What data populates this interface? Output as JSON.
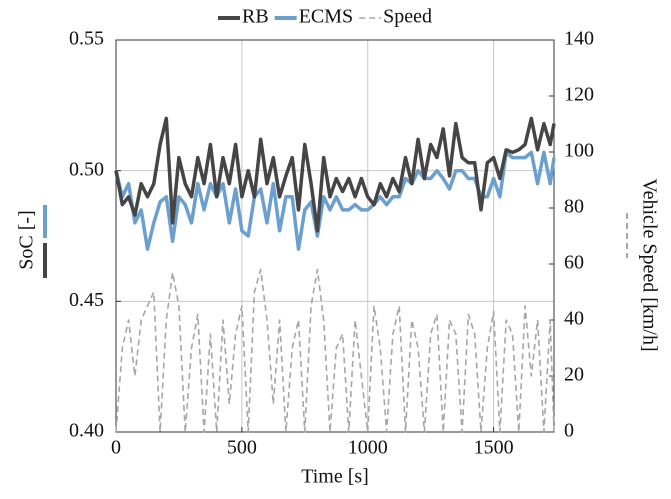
{
  "chart_data": {
    "type": "line",
    "x_label": "Time [s]",
    "y_label": "SoC [-]",
    "y2_label": "Vehicle Speed [km/h]",
    "legend": "top",
    "grid": true,
    "xlim": [
      0,
      1740
    ],
    "xticks": [
      0,
      500,
      1000,
      1500
    ],
    "ylim": [
      0.4,
      0.55
    ],
    "yticks": [
      {
        "value": 0.4,
        "label": "0.40"
      },
      0.45,
      {
        "value": 0.5,
        "label": "0.50"
      },
      0.55
    ],
    "y2lim": [
      0,
      140
    ],
    "y2ticks": [
      0,
      20,
      40,
      60,
      80,
      100,
      120,
      140
    ],
    "x": [
      0,
      25,
      50,
      75,
      100,
      125,
      150,
      175,
      200,
      225,
      250,
      275,
      300,
      325,
      350,
      375,
      400,
      425,
      450,
      475,
      500,
      525,
      550,
      575,
      600,
      625,
      650,
      675,
      700,
      725,
      750,
      775,
      800,
      825,
      850,
      875,
      900,
      925,
      950,
      975,
      1000,
      1025,
      1050,
      1075,
      1100,
      1125,
      1150,
      1175,
      1200,
      1225,
      1250,
      1275,
      1300,
      1325,
      1350,
      1375,
      1400,
      1425,
      1450,
      1475,
      1500,
      1525,
      1550,
      1575,
      1600,
      1625,
      1650,
      1675,
      1700,
      1725,
      1740
    ],
    "series": [
      {
        "name": "RB",
        "color": "#454545",
        "dash": "solid",
        "values": [
          0.5,
          0.487,
          0.49,
          0.483,
          0.495,
          0.49,
          0.495,
          0.51,
          0.52,
          0.48,
          0.505,
          0.495,
          0.49,
          0.505,
          0.495,
          0.51,
          0.49,
          0.505,
          0.495,
          0.51,
          0.49,
          0.5,
          0.49,
          0.512,
          0.495,
          0.505,
          0.49,
          0.498,
          0.505,
          0.485,
          0.51,
          0.495,
          0.477,
          0.505,
          0.49,
          0.497,
          0.492,
          0.497,
          0.49,
          0.497,
          0.49,
          0.487,
          0.495,
          0.49,
          0.497,
          0.492,
          0.505,
          0.495,
          0.512,
          0.497,
          0.51,
          0.505,
          0.516,
          0.498,
          0.518,
          0.505,
          0.503,
          0.503,
          0.485,
          0.503,
          0.505,
          0.497,
          0.508,
          0.507,
          0.508,
          0.51,
          0.52,
          0.508,
          0.518,
          0.51,
          0.518
        ]
      },
      {
        "name": "ECMS",
        "color": "#6a9fd0",
        "dash": "solid",
        "values": [
          0.5,
          0.49,
          0.495,
          0.48,
          0.485,
          0.47,
          0.48,
          0.488,
          0.49,
          0.473,
          0.49,
          0.487,
          0.48,
          0.495,
          0.485,
          0.495,
          0.49,
          0.495,
          0.48,
          0.493,
          0.477,
          0.475,
          0.49,
          0.493,
          0.48,
          0.495,
          0.477,
          0.49,
          0.49,
          0.47,
          0.485,
          0.488,
          0.475,
          0.49,
          0.485,
          0.49,
          0.485,
          0.485,
          0.487,
          0.485,
          0.485,
          0.487,
          0.49,
          0.487,
          0.49,
          0.49,
          0.497,
          0.495,
          0.5,
          0.497,
          0.497,
          0.5,
          0.497,
          0.493,
          0.5,
          0.5,
          0.497,
          0.497,
          0.49,
          0.49,
          0.497,
          0.49,
          0.507,
          0.505,
          0.505,
          0.505,
          0.507,
          0.495,
          0.507,
          0.495,
          0.505
        ]
      },
      {
        "name": "Speed",
        "color": "#a6a6a6",
        "dash": "dashed",
        "axis": "y2",
        "values": [
          0,
          30,
          40,
          20,
          40,
          45,
          50,
          0,
          40,
          57,
          45,
          0,
          30,
          42,
          0,
          35,
          0,
          40,
          10,
          35,
          45,
          0,
          50,
          58,
          40,
          10,
          40,
          0,
          30,
          40,
          0,
          45,
          58,
          40,
          0,
          30,
          35,
          0,
          40,
          20,
          0,
          45,
          30,
          0,
          35,
          45,
          0,
          40,
          30,
          0,
          35,
          42,
          0,
          40,
          35,
          0,
          42,
          35,
          0,
          30,
          43,
          0,
          40,
          35,
          0,
          45,
          20,
          40,
          0,
          40,
          0
        ]
      }
    ]
  }
}
